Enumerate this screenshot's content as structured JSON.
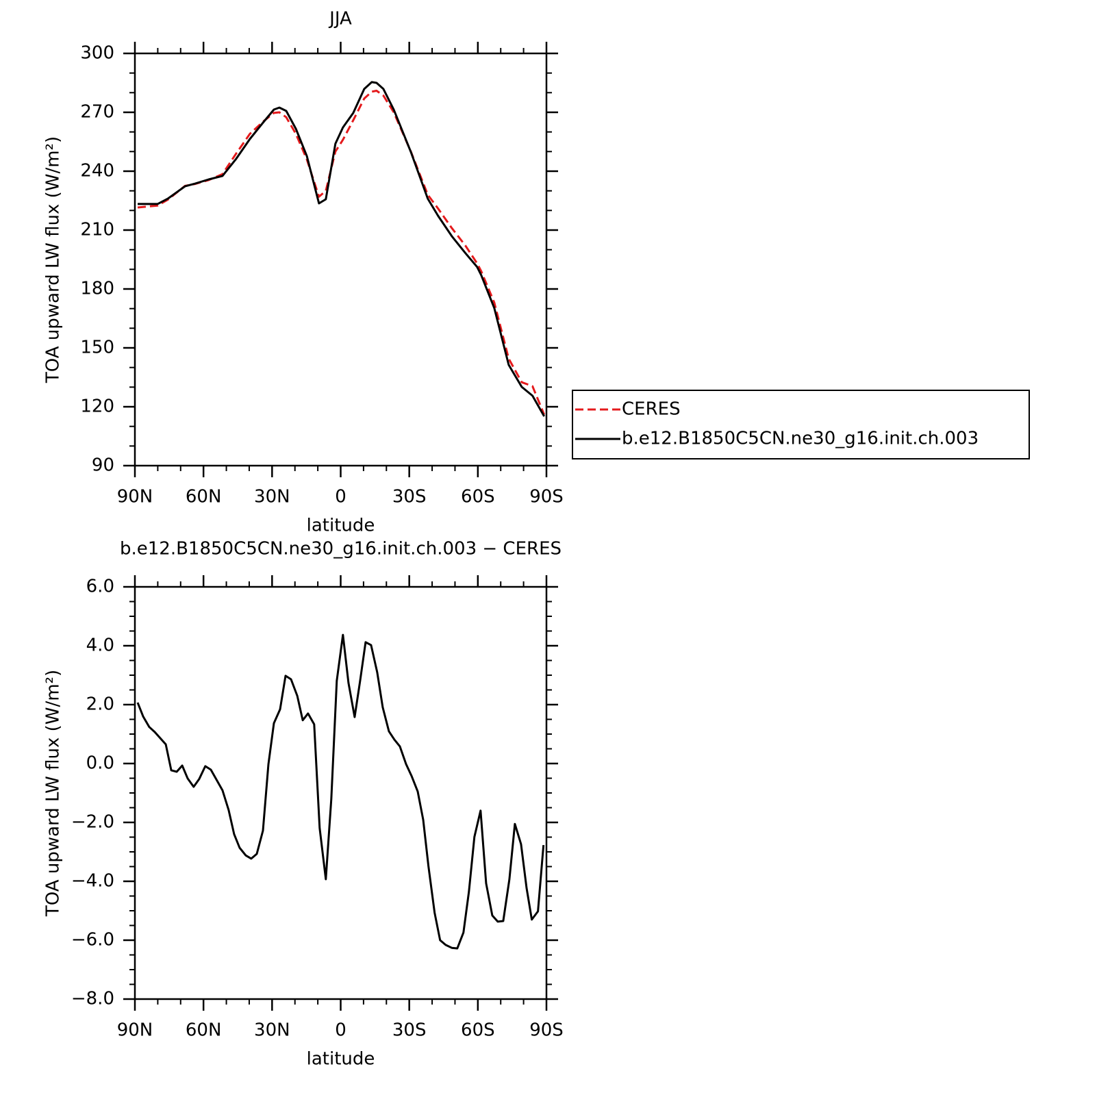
{
  "chart_data": [
    {
      "type": "line",
      "title": "JJA",
      "x_label": "latitude",
      "y_label": "TOA upward LW flux (W/m²)",
      "x": [
        88.8,
        80.1,
        75.6,
        68.1,
        63.6,
        57.7,
        51.7,
        45.7,
        39.7,
        33.7,
        29.2,
        26.8,
        23.8,
        19.6,
        14.8,
        9.5,
        6.5,
        2.3,
        -1,
        -5.5,
        -10.3,
        -13.6,
        -15.7,
        -18.7,
        -23.2,
        -30.7,
        -38.1,
        -42.6,
        -48.6,
        -54.6,
        -59.7,
        -61.5,
        -67.2,
        -73.5,
        -79.2,
        -83.9,
        -89
      ],
      "series": [
        {
          "name": "CERES",
          "color": "#e41a1c",
          "dash": true,
          "values": [
            221.5,
            222.5,
            225.5,
            232.5,
            233.5,
            235.5,
            238.5,
            249,
            259,
            265.5,
            269.7,
            270,
            267.5,
            259,
            246,
            227,
            230,
            250,
            256,
            266,
            277,
            280.5,
            281,
            278.5,
            270,
            250,
            228,
            221,
            211,
            202,
            193,
            189,
            173,
            144.5,
            132.5,
            130.5,
            116
          ]
        },
        {
          "name": "b.e12.B1850C5CN.ne30_g16.init.ch.003",
          "color": "#000000",
          "dash": false,
          "values": [
            223.3,
            223.3,
            226,
            232.3,
            233.7,
            235.8,
            237.6,
            246.3,
            256.4,
            265.1,
            271.4,
            272.4,
            270.7,
            261.6,
            247.7,
            223.6,
            225.7,
            254,
            262.3,
            269.7,
            281.9,
            285.4,
            285,
            281.9,
            271.4,
            249.8,
            226,
            217.3,
            206.9,
            198.2,
            191.2,
            187,
            170.2,
            141.3,
            130.1,
            125.6,
            115.1
          ]
        }
      ],
      "xlim": [
        90,
        -90
      ],
      "xticks": [
        {
          "value": 90,
          "label": "90N"
        },
        {
          "value": 60,
          "label": "60N"
        },
        {
          "value": 30,
          "label": "30N"
        },
        0,
        {
          "value": -30,
          "label": "30S"
        },
        {
          "value": -60,
          "label": "60S"
        },
        {
          "value": -90,
          "label": "90S"
        }
      ],
      "minor_xticks": [
        80,
        70,
        50,
        40,
        20,
        10,
        -10,
        -20,
        -40,
        -50,
        -70,
        -80
      ],
      "ylim": [
        90,
        300
      ],
      "yticks": [
        90,
        120,
        150,
        180,
        210,
        240,
        270,
        300
      ],
      "minor_yticks": [
        100,
        110,
        130,
        140,
        160,
        170,
        190,
        200,
        220,
        230,
        250,
        260,
        280,
        290
      ],
      "legend": "right"
    },
    {
      "type": "line",
      "title": "b.e12.B1850C5CN.ne30_g16.init.ch.003 − CERES",
      "x_label": "latitude",
      "y_label": "TOA upward LW flux (W/m²)",
      "x": [
        88.8,
        86.4,
        83.7,
        81.3,
        76.5,
        74.1,
        71.7,
        69.3,
        66.9,
        64.3,
        61.9,
        59.2,
        56.8,
        51.7,
        49,
        46.6,
        44.2,
        41.5,
        39.1,
        36.7,
        34,
        31.6,
        29.2,
        26.5,
        24.1,
        21.7,
        19,
        16.6,
        14.3,
        11.6,
        9.2,
        6.5,
        4.1,
        1.7,
        -1,
        -3.4,
        -6.1,
        -8.5,
        -10.9,
        -13.3,
        -16,
        -18.4,
        -21.1,
        -23.5,
        -25.9,
        -28.6,
        -31,
        -33.7,
        -36.1,
        -38.4,
        -41.1,
        -43.5,
        -45.9,
        -48.6,
        -51,
        -53.7,
        -56.1,
        -58.5,
        -61.2,
        -63.6,
        -66.3,
        -68.7,
        -71.1,
        -73.8,
        -76.2,
        -78.9,
        -81.3,
        -83.6,
        -86.3,
        -88.7
      ],
      "series": [
        {
          "color": "#000000",
          "dash": false,
          "values": [
            2.07,
            1.6,
            1.24,
            1.07,
            0.65,
            -0.23,
            -0.28,
            -0.07,
            -0.51,
            -0.79,
            -0.53,
            -0.09,
            -0.21,
            -0.91,
            -1.58,
            -2.4,
            -2.86,
            -3.12,
            -3.23,
            -3.07,
            -2.28,
            -0.02,
            1.37,
            1.84,
            2.98,
            2.86,
            2.3,
            1.47,
            1.7,
            1.33,
            -2.19,
            -3.93,
            -1.21,
            2.81,
            4.37,
            2.74,
            1.58,
            2.81,
            4.12,
            4.02,
            3.09,
            1.91,
            1.09,
            0.81,
            0.58,
            -0.02,
            -0.42,
            -0.95,
            -1.91,
            -3.49,
            -5.07,
            -6,
            -6.16,
            -6.26,
            -6.28,
            -5.74,
            -4.35,
            -2.49,
            -1.6,
            -4.07,
            -5.16,
            -5.37,
            -5.35,
            -3.93,
            -2.05,
            -2.74,
            -4.23,
            -5.3,
            -5.02,
            -2.77
          ]
        }
      ],
      "xlim": [
        90,
        -90
      ],
      "xticks": [
        {
          "value": 90,
          "label": "90N"
        },
        {
          "value": 60,
          "label": "60N"
        },
        {
          "value": 30,
          "label": "30N"
        },
        0,
        {
          "value": -30,
          "label": "30S"
        },
        {
          "value": -60,
          "label": "60S"
        },
        {
          "value": -90,
          "label": "90S"
        }
      ],
      "minor_xticks": [
        80,
        70,
        50,
        40,
        20,
        10,
        -10,
        -20,
        -40,
        -50,
        -70,
        -80
      ],
      "ylim": [
        -8,
        6
      ],
      "yticks": [
        {
          "value": -8,
          "label": "−8.0"
        },
        {
          "value": -6,
          "label": "−6.0"
        },
        {
          "value": -4,
          "label": "−4.0"
        },
        {
          "value": -2,
          "label": "−2.0"
        },
        {
          "value": 0,
          "label": "0.0"
        },
        {
          "value": 2,
          "label": "2.0"
        },
        {
          "value": 4,
          "label": "4.0"
        },
        {
          "value": 6,
          "label": "6.0"
        }
      ],
      "minor_yticks": [
        -7.5,
        -7,
        -6.5,
        -5.5,
        -5,
        -4.5,
        -3.5,
        -3,
        -2.5,
        -1.5,
        -1,
        -0.5,
        0.5,
        1,
        1.5,
        2.5,
        3,
        3.5,
        4.5,
        5,
        5.5
      ]
    }
  ]
}
